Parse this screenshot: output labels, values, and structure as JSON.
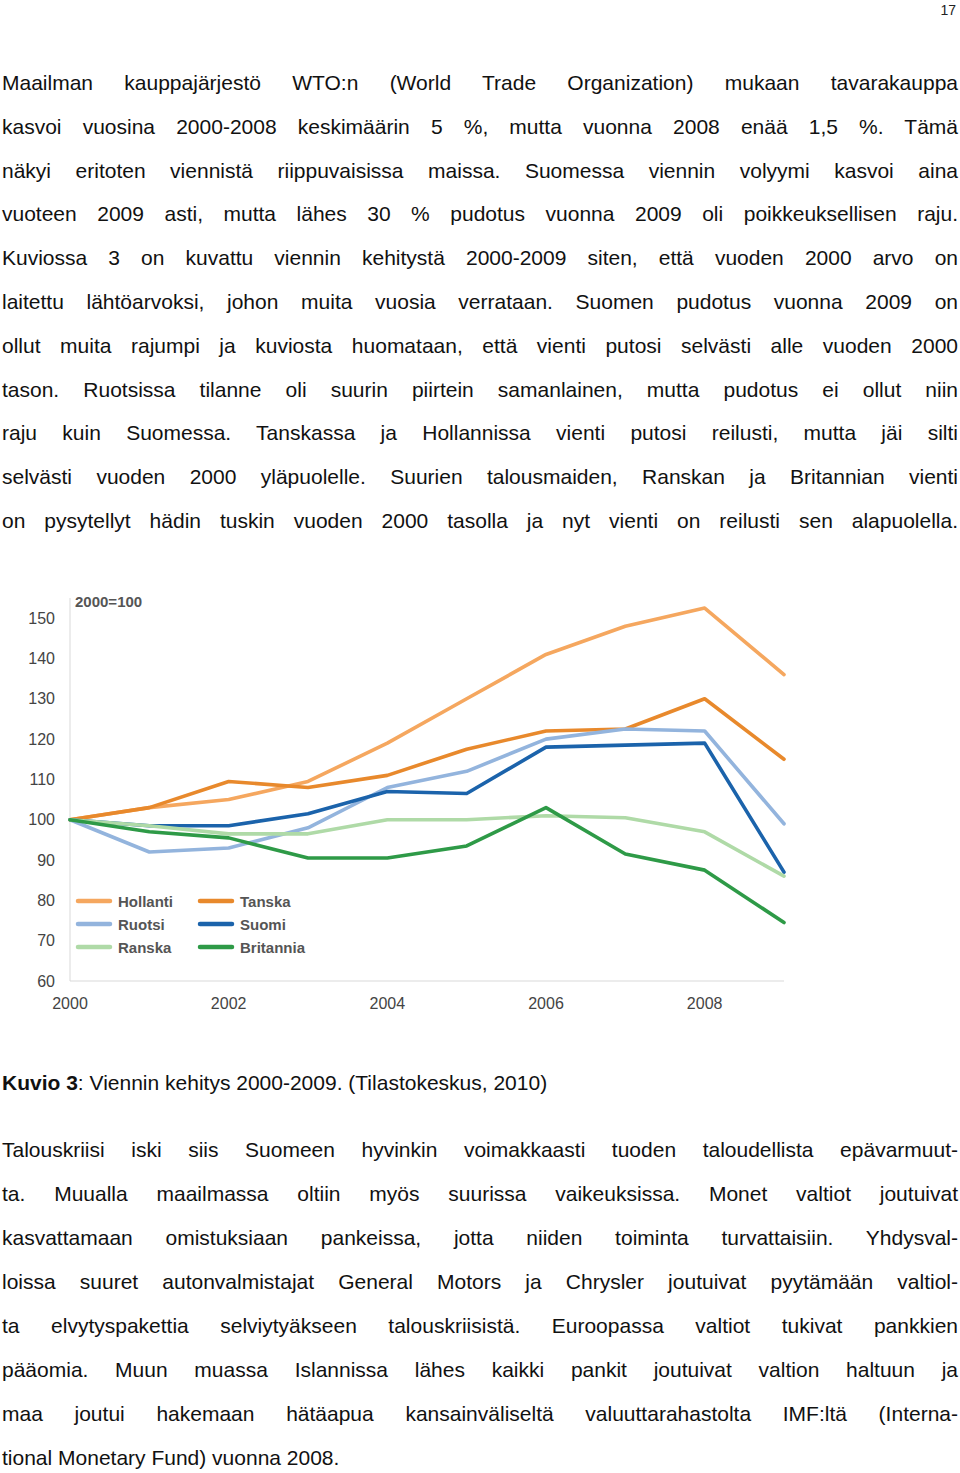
{
  "page_number": "17",
  "text_before": [
    "Maailman kauppajärjestö WTO:n (World Trade Organization) mukaan tavarakauppa",
    "kasvoi vuosina 2000-2008 keskimäärin 5 %, mutta vuonna 2008 enää 1,5 %. Tämä",
    "näkyi eritoten viennistä riippuvaisissa maissa. Suomessa viennin volyymi kasvoi aina",
    "vuoteen 2009 asti, mutta lähes 30 % pudotus vuonna 2009 oli poikkeuksellisen raju.",
    "Kuviossa 3 on kuvattu viennin kehitystä 2000-2009 siten, että vuoden 2000 arvo on",
    "laitettu lähtöarvoksi, johon muita vuosia verrataan. Suomen pudotus vuonna 2009 on",
    "ollut muita rajumpi ja kuviosta huomataan, että vienti putosi selvästi alle vuoden 2000",
    "tason. Ruotsissa tilanne oli suurin piirtein samanlainen, mutta pudotus ei ollut niin",
    "raju kuin Suomessa. Tanskassa ja Hollannissa vienti putosi reilusti, mutta jäi silti",
    "selvästi vuoden 2000 yläpuolelle. Suurien talousmaiden, Ranskan ja Britannian vienti",
    "on pysytellyt hädin tuskin vuoden 2000 tasolla ja nyt vienti on reilusti sen alapuolella."
  ],
  "chart_data": {
    "type": "line",
    "annotation": "2000=100",
    "x": [
      2000,
      2001,
      2002,
      2003,
      2004,
      2005,
      2006,
      2007,
      2008,
      2009
    ],
    "xlim": [
      2000,
      2009
    ],
    "xticks": [
      2000,
      2002,
      2004,
      2006,
      2008
    ],
    "ylim": [
      60,
      155
    ],
    "yticks": [
      60,
      70,
      80,
      90,
      100,
      110,
      120,
      130,
      140,
      150
    ],
    "grid": false,
    "legend": "lower left",
    "series": [
      {
        "name": "Hollanti",
        "color": "#f5a75f",
        "values": [
          100,
          103,
          105,
          109.5,
          119,
          130,
          141,
          148,
          152.5,
          136
        ]
      },
      {
        "name": "Tanska",
        "color": "#e8892c",
        "values": [
          100,
          103,
          109.5,
          108,
          111,
          117.5,
          122,
          122.5,
          130,
          115
        ]
      },
      {
        "name": "Ruotsi",
        "color": "#93b4dd",
        "values": [
          100,
          92,
          93,
          98,
          108,
          112,
          120,
          122.5,
          122,
          99
        ]
      },
      {
        "name": "Suomi",
        "color": "#1b63ab",
        "values": [
          100,
          98.5,
          98.5,
          101.5,
          107,
          106.5,
          118,
          118.5,
          119,
          87
        ]
      },
      {
        "name": "Ranska",
        "color": "#afdaa7",
        "values": [
          100,
          98.5,
          96.5,
          96.5,
          100,
          100,
          101,
          100.5,
          97,
          86
        ]
      },
      {
        "name": "Britannia",
        "color": "#2e9a47",
        "values": [
          100,
          97,
          95.5,
          90.5,
          90.5,
          93.5,
          103,
          91.5,
          87.5,
          74.5
        ]
      }
    ]
  },
  "caption": {
    "label": "Kuvio 3",
    "text": ": Viennin kehitys 2000-2009. (Tilastokeskus, 2010)"
  },
  "text_after": [
    "Talouskriisi iski siis Suomeen hyvinkin voimakkaasti tuoden taloudellista epävarmuut-",
    "ta. Muualla maailmassa oltiin myös suurissa vaikeuksissa. Monet valtiot joutuivat",
    "kasvattamaan omistuksiaan pankeissa, jotta niiden toiminta turvattaisiin. Yhdysval-",
    "loissa suuret autonvalmistajat General Motors ja Chrysler joutuivat pyytämään valtiol-",
    "ta elvytyspakettia selviytyäkseen talouskriisistä. Euroopassa valtiot tukivat pankkien",
    "pääomia. Muun muassa Islannissa lähes kaikki pankit joutuivat valtion haltuun ja",
    "maa joutui hakemaan hätäapua kansainväliseltä valuuttarahastolta IMF:ltä (Interna-",
    "tional Monetary Fund) vuonna 2008."
  ]
}
